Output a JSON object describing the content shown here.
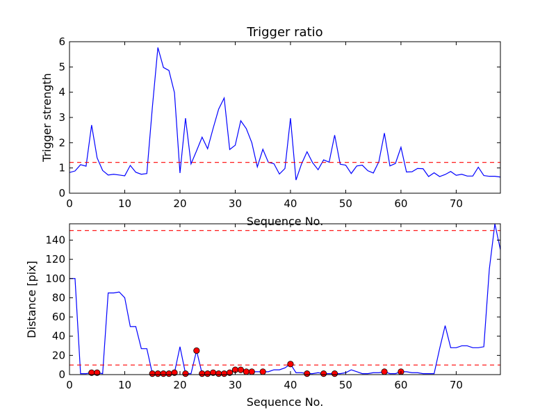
{
  "chart_data": [
    {
      "type": "line",
      "title": "Trigger ratio",
      "xlabel": "Sequence No.",
      "ylabel": "Trigger strength",
      "xlim": [
        0,
        78
      ],
      "ylim": [
        0,
        6
      ],
      "xticks": [
        0,
        10,
        20,
        30,
        40,
        50,
        60,
        70
      ],
      "yticks": [
        0,
        1,
        2,
        3,
        4,
        5,
        6
      ],
      "grid": false,
      "line_color": "#0000ff",
      "threshold_color": "#ff0000",
      "thresholds": [
        1.22
      ],
      "series": [
        {
          "x": [
            0,
            1,
            2,
            3,
            4,
            5,
            6,
            7,
            8,
            9,
            10,
            11,
            12,
            13,
            14,
            15,
            16,
            17,
            18,
            19,
            20,
            21,
            22,
            23,
            24,
            25,
            26,
            27,
            28,
            29,
            30,
            31,
            32,
            33,
            34,
            35,
            36,
            37,
            38,
            39,
            40,
            41,
            42,
            43,
            44,
            45,
            46,
            47,
            48,
            49,
            50,
            51,
            52,
            53,
            54,
            55,
            56,
            57,
            58,
            59,
            60,
            61,
            62,
            63,
            64,
            65,
            66,
            67,
            68,
            69,
            70,
            71,
            72,
            73,
            74,
            75,
            76,
            77,
            78
          ],
          "y": [
            0.82,
            0.88,
            1.13,
            1.07,
            2.7,
            1.4,
            0.9,
            0.72,
            0.75,
            0.72,
            0.69,
            1.1,
            0.83,
            0.75,
            0.78,
            3.4,
            5.77,
            4.98,
            4.86,
            3.98,
            0.8,
            2.97,
            1.16,
            1.68,
            2.22,
            1.76,
            2.57,
            3.33,
            3.77,
            1.73,
            1.9,
            2.87,
            2.56,
            2.0,
            1.04,
            1.74,
            1.22,
            1.17,
            0.76,
            0.98,
            2.97,
            0.52,
            1.16,
            1.64,
            1.21,
            0.93,
            1.32,
            1.23,
            2.3,
            1.15,
            1.11,
            0.78,
            1.08,
            1.11,
            0.89,
            0.8,
            1.25,
            2.38,
            1.08,
            1.18,
            1.82,
            0.84,
            0.85,
            0.98,
            0.97,
            0.66,
            0.81,
            0.66,
            0.74,
            0.86,
            0.71,
            0.75,
            0.68,
            0.68,
            1.03,
            0.7,
            0.67,
            0.67,
            0.64
          ]
        }
      ]
    },
    {
      "type": "line",
      "title": "",
      "xlabel": "Sequence No.",
      "ylabel": "Distance [pix]",
      "xlim": [
        0,
        78
      ],
      "ylim": [
        0,
        157
      ],
      "xticks": [
        0,
        10,
        20,
        30,
        40,
        50,
        60,
        70
      ],
      "yticks": [
        0,
        20,
        40,
        60,
        80,
        100,
        120,
        140
      ],
      "grid": false,
      "line_color": "#0000ff",
      "threshold_color": "#ff0000",
      "marker_color": "#ff0000",
      "thresholds": [
        10,
        150
      ],
      "series": [
        {
          "x": [
            0,
            1,
            2,
            3,
            4,
            5,
            6,
            7,
            8,
            9,
            10,
            11,
            12,
            13,
            14,
            15,
            16,
            17,
            18,
            19,
            20,
            21,
            22,
            23,
            24,
            25,
            26,
            27,
            28,
            29,
            30,
            31,
            32,
            33,
            34,
            35,
            36,
            37,
            38,
            39,
            40,
            41,
            42,
            43,
            44,
            45,
            46,
            47,
            48,
            49,
            50,
            51,
            52,
            53,
            54,
            55,
            56,
            57,
            58,
            59,
            60,
            61,
            62,
            63,
            64,
            65,
            66,
            67,
            68,
            69,
            70,
            71,
            72,
            73,
            74,
            75,
            76,
            77,
            78
          ],
          "y": [
            100,
            100,
            1,
            1,
            2,
            2,
            1,
            85,
            85,
            86,
            80,
            50,
            50,
            27,
            27,
            1,
            1,
            1,
            1,
            2,
            29,
            1,
            1,
            25,
            1,
            1,
            2,
            1,
            1,
            2,
            5,
            5,
            3,
            3,
            3,
            3,
            3,
            5,
            5,
            7,
            11,
            2,
            2,
            1,
            1,
            2,
            1,
            1,
            1,
            1,
            2,
            5,
            3,
            1,
            1,
            2,
            2,
            3,
            1,
            1,
            3,
            3,
            2,
            2,
            1,
            1,
            1,
            27,
            51,
            28,
            28,
            30,
            30,
            28,
            28,
            29,
            110,
            157,
            130
          ]
        }
      ],
      "markers": {
        "x": [
          4,
          5,
          15,
          16,
          17,
          18,
          19,
          21,
          23,
          24,
          25,
          26,
          27,
          28,
          29,
          30,
          31,
          32,
          33,
          35,
          40,
          43,
          46,
          48,
          57,
          60
        ],
        "y": [
          2,
          2,
          1,
          1,
          1,
          1,
          2,
          1,
          25,
          1,
          1,
          2,
          1,
          1,
          2,
          5,
          5,
          3,
          3,
          3,
          11,
          1,
          1,
          1,
          3,
          3
        ]
      }
    }
  ]
}
